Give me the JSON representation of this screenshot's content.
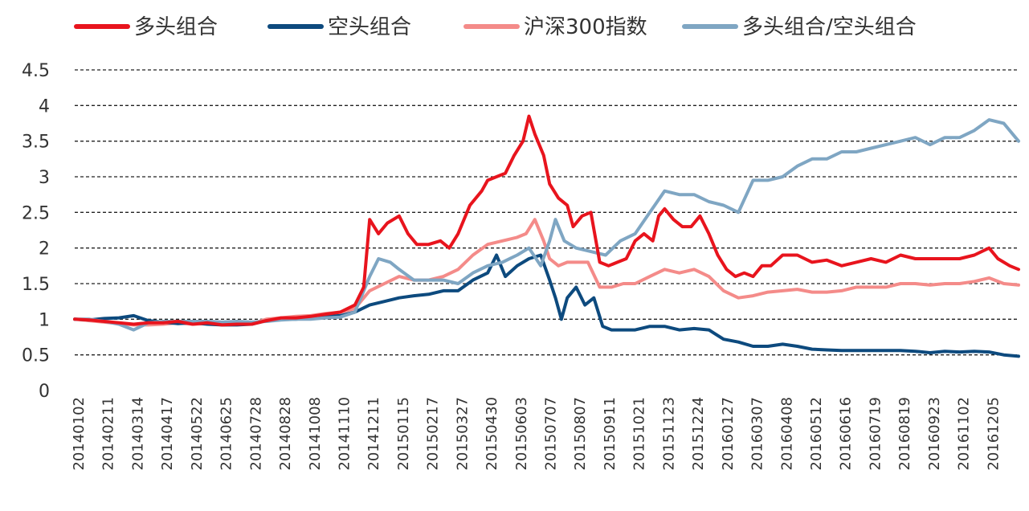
{
  "chart_data": {
    "type": "line",
    "legend_position": "top",
    "grid": true,
    "ylim": [
      0,
      4.5
    ],
    "yticks": [
      "4.5",
      "4",
      "3.5",
      "3",
      "2.5",
      "2",
      "1.5",
      "1",
      "0.5",
      "0"
    ],
    "categories": [
      "20140102",
      "20140211",
      "20140314",
      "20140417",
      "20140522",
      "20140625",
      "20140728",
      "20140828",
      "20141008",
      "20141110",
      "20141211",
      "20150115",
      "20150217",
      "20150327",
      "20150430",
      "20150603",
      "20150707",
      "20150807",
      "20150911",
      "20151021",
      "20151123",
      "20151224",
      "20160127",
      "20160307",
      "20160408",
      "20160512",
      "20160616",
      "20160719",
      "20160819",
      "20160923",
      "20161102",
      "20161205"
    ],
    "series": [
      {
        "name": "多头组合",
        "color": "#e8141d",
        "points": [
          [
            0,
            1.0
          ],
          [
            0.5,
            0.99
          ],
          [
            1,
            0.97
          ],
          [
            1.5,
            0.95
          ],
          [
            2,
            0.93
          ],
          [
            2.5,
            0.95
          ],
          [
            3,
            0.95
          ],
          [
            3.5,
            0.97
          ],
          [
            4,
            0.93
          ],
          [
            4.5,
            0.95
          ],
          [
            5,
            0.92
          ],
          [
            5.5,
            0.93
          ],
          [
            6,
            0.93
          ],
          [
            6.5,
            0.98
          ],
          [
            7,
            1.02
          ],
          [
            7.5,
            1.02
          ],
          [
            8,
            1.04
          ],
          [
            8.5,
            1.07
          ],
          [
            9,
            1.1
          ],
          [
            9.5,
            1.2
          ],
          [
            9.8,
            1.45
          ],
          [
            10,
            2.4
          ],
          [
            10.3,
            2.2
          ],
          [
            10.6,
            2.35
          ],
          [
            11,
            2.45
          ],
          [
            11.3,
            2.2
          ],
          [
            11.6,
            2.05
          ],
          [
            12,
            2.05
          ],
          [
            12.4,
            2.1
          ],
          [
            12.7,
            2.0
          ],
          [
            13,
            2.2
          ],
          [
            13.4,
            2.6
          ],
          [
            13.8,
            2.8
          ],
          [
            14,
            2.95
          ],
          [
            14.3,
            3.0
          ],
          [
            14.6,
            3.05
          ],
          [
            14.9,
            3.3
          ],
          [
            15.2,
            3.5
          ],
          [
            15.4,
            3.85
          ],
          [
            15.6,
            3.6
          ],
          [
            15.9,
            3.3
          ],
          [
            16.1,
            2.9
          ],
          [
            16.4,
            2.7
          ],
          [
            16.7,
            2.6
          ],
          [
            16.9,
            2.3
          ],
          [
            17.2,
            2.45
          ],
          [
            17.5,
            2.5
          ],
          [
            17.8,
            1.8
          ],
          [
            18.1,
            1.75
          ],
          [
            18.4,
            1.8
          ],
          [
            18.7,
            1.85
          ],
          [
            19,
            2.1
          ],
          [
            19.3,
            2.2
          ],
          [
            19.6,
            2.1
          ],
          [
            19.8,
            2.45
          ],
          [
            20,
            2.55
          ],
          [
            20.3,
            2.4
          ],
          [
            20.6,
            2.3
          ],
          [
            20.9,
            2.3
          ],
          [
            21.2,
            2.45
          ],
          [
            21.5,
            2.2
          ],
          [
            21.8,
            1.9
          ],
          [
            22.1,
            1.7
          ],
          [
            22.4,
            1.6
          ],
          [
            22.7,
            1.65
          ],
          [
            23,
            1.6
          ],
          [
            23.3,
            1.75
          ],
          [
            23.6,
            1.75
          ],
          [
            24,
            1.9
          ],
          [
            24.5,
            1.9
          ],
          [
            25,
            1.8
          ],
          [
            25.5,
            1.83
          ],
          [
            26,
            1.75
          ],
          [
            26.5,
            1.8
          ],
          [
            27,
            1.85
          ],
          [
            27.5,
            1.8
          ],
          [
            28,
            1.9
          ],
          [
            28.5,
            1.85
          ],
          [
            29,
            1.85
          ],
          [
            29.5,
            1.85
          ],
          [
            30,
            1.85
          ],
          [
            30.5,
            1.9
          ],
          [
            31,
            2.0
          ],
          [
            31.3,
            1.85
          ],
          [
            31.7,
            1.75
          ],
          [
            32,
            1.7
          ]
        ]
      },
      {
        "name": "空头组合",
        "color": "#0d4a7e",
        "points": [
          [
            0,
            1.0
          ],
          [
            0.5,
            0.99
          ],
          [
            1,
            1.01
          ],
          [
            1.5,
            1.02
          ],
          [
            2,
            1.05
          ],
          [
            2.5,
            0.98
          ],
          [
            3,
            0.96
          ],
          [
            3.5,
            0.94
          ],
          [
            4,
            0.95
          ],
          [
            4.5,
            0.93
          ],
          [
            5,
            0.92
          ],
          [
            5.5,
            0.92
          ],
          [
            6,
            0.93
          ],
          [
            6.5,
            0.98
          ],
          [
            7,
            1.0
          ],
          [
            7.5,
            1.0
          ],
          [
            8,
            1.02
          ],
          [
            8.5,
            1.04
          ],
          [
            9,
            1.05
          ],
          [
            9.5,
            1.1
          ],
          [
            10,
            1.2
          ],
          [
            10.5,
            1.25
          ],
          [
            11,
            1.3
          ],
          [
            11.5,
            1.33
          ],
          [
            12,
            1.35
          ],
          [
            12.5,
            1.4
          ],
          [
            13,
            1.4
          ],
          [
            13.5,
            1.55
          ],
          [
            14,
            1.65
          ],
          [
            14.3,
            1.9
          ],
          [
            14.6,
            1.6
          ],
          [
            15,
            1.75
          ],
          [
            15.4,
            1.85
          ],
          [
            15.8,
            1.9
          ],
          [
            16.1,
            1.55
          ],
          [
            16.3,
            1.3
          ],
          [
            16.5,
            1.0
          ],
          [
            16.7,
            1.3
          ],
          [
            17,
            1.45
          ],
          [
            17.3,
            1.2
          ],
          [
            17.6,
            1.3
          ],
          [
            17.9,
            0.9
          ],
          [
            18.2,
            0.85
          ],
          [
            18.6,
            0.85
          ],
          [
            19,
            0.85
          ],
          [
            19.5,
            0.9
          ],
          [
            20,
            0.9
          ],
          [
            20.5,
            0.85
          ],
          [
            21,
            0.87
          ],
          [
            21.5,
            0.85
          ],
          [
            22,
            0.72
          ],
          [
            22.5,
            0.68
          ],
          [
            23,
            0.62
          ],
          [
            23.5,
            0.62
          ],
          [
            24,
            0.65
          ],
          [
            24.5,
            0.62
          ],
          [
            25,
            0.58
          ],
          [
            25.5,
            0.57
          ],
          [
            26,
            0.56
          ],
          [
            26.5,
            0.56
          ],
          [
            27,
            0.56
          ],
          [
            27.5,
            0.56
          ],
          [
            28,
            0.56
          ],
          [
            28.5,
            0.55
          ],
          [
            29,
            0.53
          ],
          [
            29.5,
            0.55
          ],
          [
            30,
            0.54
          ],
          [
            30.5,
            0.55
          ],
          [
            31,
            0.54
          ],
          [
            31.5,
            0.5
          ],
          [
            32,
            0.48
          ]
        ]
      },
      {
        "name": "沪深300指数",
        "color": "#f48b89",
        "points": [
          [
            0,
            1.0
          ],
          [
            0.5,
            0.98
          ],
          [
            1,
            0.96
          ],
          [
            1.5,
            0.94
          ],
          [
            2,
            0.92
          ],
          [
            2.5,
            0.92
          ],
          [
            3,
            0.93
          ],
          [
            3.5,
            0.95
          ],
          [
            4,
            0.93
          ],
          [
            4.5,
            0.94
          ],
          [
            5,
            0.92
          ],
          [
            5.5,
            0.94
          ],
          [
            6,
            0.94
          ],
          [
            6.5,
            1.0
          ],
          [
            7,
            1.02
          ],
          [
            7.5,
            1.04
          ],
          [
            8,
            1.05
          ],
          [
            8.5,
            1.08
          ],
          [
            9,
            1.1
          ],
          [
            9.5,
            1.15
          ],
          [
            10,
            1.4
          ],
          [
            10.5,
            1.5
          ],
          [
            11,
            1.6
          ],
          [
            11.5,
            1.55
          ],
          [
            12,
            1.55
          ],
          [
            12.5,
            1.6
          ],
          [
            13,
            1.7
          ],
          [
            13.5,
            1.9
          ],
          [
            14,
            2.05
          ],
          [
            14.5,
            2.1
          ],
          [
            15,
            2.15
          ],
          [
            15.3,
            2.2
          ],
          [
            15.6,
            2.4
          ],
          [
            15.9,
            2.1
          ],
          [
            16.1,
            1.85
          ],
          [
            16.4,
            1.75
          ],
          [
            16.7,
            1.8
          ],
          [
            17,
            1.8
          ],
          [
            17.4,
            1.8
          ],
          [
            17.8,
            1.45
          ],
          [
            18.2,
            1.45
          ],
          [
            18.6,
            1.5
          ],
          [
            19,
            1.5
          ],
          [
            19.5,
            1.6
          ],
          [
            20,
            1.7
          ],
          [
            20.5,
            1.65
          ],
          [
            21,
            1.7
          ],
          [
            21.5,
            1.6
          ],
          [
            22,
            1.4
          ],
          [
            22.5,
            1.3
          ],
          [
            23,
            1.33
          ],
          [
            23.5,
            1.38
          ],
          [
            24,
            1.4
          ],
          [
            24.5,
            1.42
          ],
          [
            25,
            1.38
          ],
          [
            25.5,
            1.38
          ],
          [
            26,
            1.4
          ],
          [
            26.5,
            1.45
          ],
          [
            27,
            1.45
          ],
          [
            27.5,
            1.45
          ],
          [
            28,
            1.5
          ],
          [
            28.5,
            1.5
          ],
          [
            29,
            1.48
          ],
          [
            29.5,
            1.5
          ],
          [
            30,
            1.5
          ],
          [
            30.5,
            1.53
          ],
          [
            31,
            1.58
          ],
          [
            31.5,
            1.5
          ],
          [
            32,
            1.48
          ]
        ]
      },
      {
        "name": "多头组合/空头组合",
        "color": "#7fa6c3",
        "points": [
          [
            0,
            1.0
          ],
          [
            0.5,
            1.0
          ],
          [
            1,
            0.97
          ],
          [
            1.5,
            0.93
          ],
          [
            2,
            0.85
          ],
          [
            2.5,
            0.95
          ],
          [
            3,
            0.97
          ],
          [
            3.5,
            0.97
          ],
          [
            4,
            0.97
          ],
          [
            4.5,
            0.97
          ],
          [
            5,
            0.96
          ],
          [
            5.5,
            0.97
          ],
          [
            6,
            0.96
          ],
          [
            6.5,
            0.97
          ],
          [
            7,
            0.99
          ],
          [
            7.5,
            1.0
          ],
          [
            8,
            1.0
          ],
          [
            8.5,
            1.02
          ],
          [
            9,
            1.03
          ],
          [
            9.5,
            1.1
          ],
          [
            10,
            1.6
          ],
          [
            10.3,
            1.85
          ],
          [
            10.7,
            1.8
          ],
          [
            11,
            1.7
          ],
          [
            11.5,
            1.55
          ],
          [
            12,
            1.55
          ],
          [
            12.5,
            1.55
          ],
          [
            13,
            1.5
          ],
          [
            13.5,
            1.65
          ],
          [
            14,
            1.75
          ],
          [
            14.5,
            1.8
          ],
          [
            15,
            1.9
          ],
          [
            15.4,
            2.0
          ],
          [
            15.8,
            1.75
          ],
          [
            16.1,
            2.1
          ],
          [
            16.3,
            2.4
          ],
          [
            16.6,
            2.1
          ],
          [
            17,
            2.0
          ],
          [
            17.5,
            1.95
          ],
          [
            18,
            1.9
          ],
          [
            18.5,
            2.1
          ],
          [
            19,
            2.2
          ],
          [
            19.5,
            2.5
          ],
          [
            20,
            2.8
          ],
          [
            20.5,
            2.75
          ],
          [
            21,
            2.75
          ],
          [
            21.5,
            2.65
          ],
          [
            22,
            2.6
          ],
          [
            22.5,
            2.5
          ],
          [
            23,
            2.95
          ],
          [
            23.5,
            2.95
          ],
          [
            24,
            3.0
          ],
          [
            24.5,
            3.15
          ],
          [
            25,
            3.25
          ],
          [
            25.5,
            3.25
          ],
          [
            26,
            3.35
          ],
          [
            26.5,
            3.35
          ],
          [
            27,
            3.4
          ],
          [
            27.5,
            3.45
          ],
          [
            28,
            3.5
          ],
          [
            28.5,
            3.55
          ],
          [
            29,
            3.45
          ],
          [
            29.5,
            3.55
          ],
          [
            30,
            3.55
          ],
          [
            30.5,
            3.65
          ],
          [
            31,
            3.8
          ],
          [
            31.5,
            3.75
          ],
          [
            32,
            3.5
          ]
        ]
      }
    ]
  }
}
